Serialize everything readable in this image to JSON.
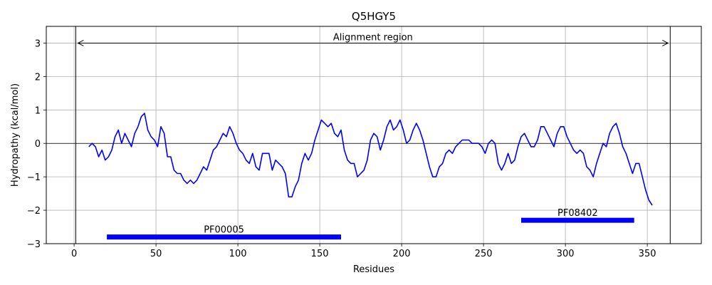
{
  "chart_data": {
    "type": "line",
    "title": "Q5HGY5",
    "xlabel": "Residues",
    "ylabel": "Hydropathy (kcal/mol)",
    "xlim": [
      -17,
      383
    ],
    "ylim": [
      -3,
      3.5
    ],
    "xticks": [
      0,
      50,
      100,
      150,
      200,
      250,
      300,
      350
    ],
    "yticks": [
      -3,
      -2,
      -1,
      0,
      1,
      2,
      3
    ],
    "grid": true,
    "series": [
      {
        "color": "#0000ff",
        "x": [
          9,
          11,
          13,
          15,
          17,
          19,
          21,
          23,
          25,
          27,
          29,
          31,
          33,
          35,
          37,
          39,
          41,
          43,
          45,
          47,
          49,
          51,
          53,
          55,
          57,
          59,
          61,
          63,
          65,
          67,
          69,
          71,
          73,
          75,
          77,
          79,
          81,
          83,
          85,
          87,
          89,
          91,
          93,
          95,
          97,
          99,
          101,
          103,
          105,
          107,
          109,
          111,
          113,
          115,
          117,
          119,
          121,
          123,
          125,
          127,
          129,
          131,
          133,
          135,
          137,
          139,
          141,
          143,
          145,
          147,
          149,
          151,
          153,
          155,
          157,
          159,
          161,
          163,
          165,
          167,
          169,
          171,
          173,
          175,
          177,
          179,
          181,
          183,
          185,
          187,
          189,
          191,
          193,
          195,
          197,
          199,
          201,
          203,
          205,
          207,
          209,
          211,
          213,
          215,
          217,
          219,
          221,
          223,
          225,
          227,
          229,
          231,
          233,
          235,
          237,
          239,
          241,
          243,
          245,
          247,
          249,
          251,
          253,
          255,
          257,
          259,
          261,
          263,
          265,
          267,
          269,
          271,
          273,
          275,
          277,
          279,
          281,
          283,
          285,
          287,
          289,
          291,
          293,
          295,
          297,
          299,
          301,
          303,
          305,
          307,
          309,
          311,
          313,
          315,
          317,
          319,
          321,
          323,
          325,
          327,
          329,
          331,
          333,
          335,
          337,
          339,
          341,
          343,
          345,
          347,
          349,
          351,
          353
        ],
        "y": [
          -0.1,
          0.0,
          -0.1,
          -0.4,
          -0.2,
          -0.5,
          -0.4,
          -0.2,
          0.2,
          0.4,
          0.0,
          0.3,
          0.1,
          -0.1,
          0.3,
          0.5,
          0.8,
          0.9,
          0.4,
          0.2,
          0.1,
          -0.1,
          0.5,
          0.3,
          -0.4,
          -0.4,
          -0.8,
          -0.9,
          -0.9,
          -1.1,
          -1.2,
          -1.1,
          -1.2,
          -1.1,
          -0.9,
          -0.7,
          -0.8,
          -0.5,
          -0.2,
          -0.1,
          0.1,
          0.3,
          0.2,
          0.5,
          0.3,
          0.0,
          -0.2,
          -0.3,
          -0.5,
          -0.6,
          -0.3,
          -0.7,
          -0.8,
          -0.3,
          -0.3,
          -0.3,
          -0.8,
          -0.5,
          -0.6,
          -0.7,
          -0.9,
          -1.6,
          -1.6,
          -1.3,
          -1.1,
          -0.6,
          -0.3,
          -0.5,
          -0.3,
          0.1,
          0.4,
          0.7,
          0.6,
          0.5,
          0.6,
          0.3,
          0.2,
          0.4,
          -0.2,
          -0.5,
          -0.6,
          -0.6,
          -1.0,
          -0.9,
          -0.8,
          -0.5,
          0.1,
          0.3,
          0.2,
          -0.2,
          0.1,
          0.5,
          0.7,
          0.4,
          0.5,
          0.7,
          0.4,
          0.0,
          0.1,
          0.4,
          0.6,
          0.4,
          0.1,
          -0.3,
          -0.7,
          -1.0,
          -1.0,
          -0.7,
          -0.6,
          -0.3,
          -0.2,
          -0.3,
          -0.1,
          0.0,
          0.1,
          0.1,
          0.1,
          0.0,
          0.0,
          0.0,
          -0.1,
          -0.3,
          0.0,
          0.1,
          0.0,
          -0.6,
          -0.8,
          -0.6,
          -0.3,
          -0.6,
          -0.5,
          -0.1,
          0.2,
          0.3,
          0.1,
          -0.1,
          -0.1,
          0.1,
          0.5,
          0.5,
          0.3,
          0.1,
          -0.1,
          0.3,
          0.5,
          0.5,
          0.2,
          0.0,
          -0.2,
          -0.3,
          -0.2,
          -0.3,
          -0.7,
          -0.8,
          -1.0,
          -0.6,
          -0.3,
          0.0,
          -0.1,
          0.3,
          0.5,
          0.6,
          0.3,
          -0.1,
          -0.3,
          -0.6,
          -0.9,
          -0.6,
          -0.6,
          -1.0,
          -1.4,
          -1.7,
          -1.85
        ]
      }
    ],
    "alignment_region": {
      "label": "Alignment region",
      "start": 1,
      "end": 364,
      "y": 3
    },
    "domains": [
      {
        "label": "PF00005",
        "start": 20,
        "end": 163,
        "y": -2.8
      },
      {
        "label": "PF08402",
        "start": 273,
        "end": 342,
        "y": -2.3
      }
    ]
  }
}
